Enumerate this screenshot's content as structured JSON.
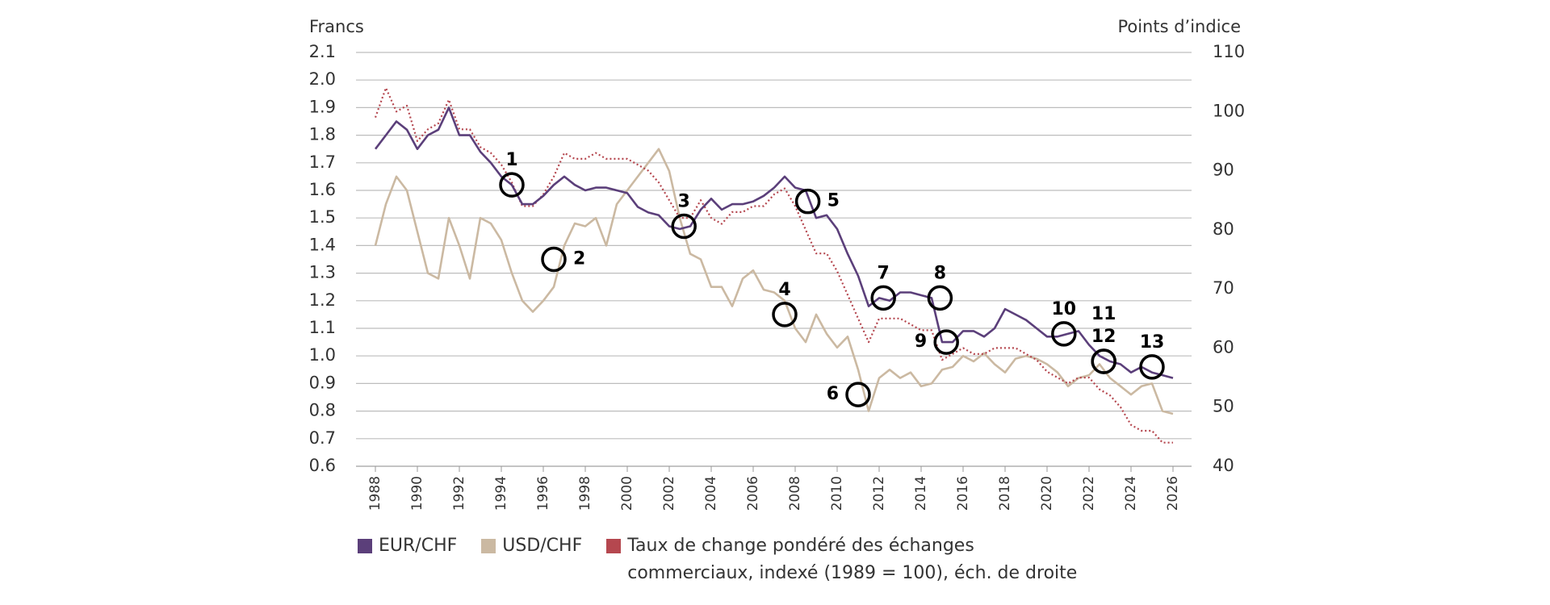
{
  "chart_data": {
    "type": "line",
    "ylabel": "Francs",
    "y2label": "Points d’indice",
    "x": [
      1988,
      1988.5,
      1989,
      1989.5,
      1990,
      1990.5,
      1991,
      1991.5,
      1992,
      1992.5,
      1993,
      1993.5,
      1994,
      1994.5,
      1995,
      1995.5,
      1996,
      1996.5,
      1997,
      1997.5,
      1998,
      1998.5,
      1999,
      1999.5,
      2000,
      2000.5,
      2001,
      2001.5,
      2002,
      2002.5,
      2003,
      2003.5,
      2004,
      2004.5,
      2005,
      2005.5,
      2006,
      2006.5,
      2007,
      2007.5,
      2008,
      2008.5,
      2009,
      2009.5,
      2010,
      2010.5,
      2011,
      2011.5,
      2012,
      2012.5,
      2013,
      2013.5,
      2014,
      2014.5,
      2015,
      2015.5,
      2016,
      2016.5,
      2017,
      2017.5,
      2018,
      2018.5,
      2019,
      2019.5,
      2020,
      2020.5,
      2021,
      2021.5,
      2022,
      2022.5,
      2023,
      2023.5,
      2024,
      2024.5,
      2025,
      2025.5,
      2026
    ],
    "series": [
      {
        "name": "EUR/CHF",
        "color": "#5b3f7a",
        "style": "solid",
        "values": [
          1.75,
          1.8,
          1.85,
          1.82,
          1.75,
          1.8,
          1.82,
          1.9,
          1.8,
          1.8,
          1.74,
          1.7,
          1.65,
          1.62,
          1.55,
          1.55,
          1.58,
          1.62,
          1.65,
          1.62,
          1.6,
          1.61,
          1.61,
          1.6,
          1.59,
          1.54,
          1.52,
          1.51,
          1.47,
          1.46,
          1.47,
          1.53,
          1.57,
          1.53,
          1.55,
          1.55,
          1.56,
          1.58,
          1.61,
          1.65,
          1.61,
          1.6,
          1.5,
          1.51,
          1.46,
          1.37,
          1.29,
          1.18,
          1.21,
          1.2,
          1.23,
          1.23,
          1.22,
          1.21,
          1.05,
          1.05,
          1.09,
          1.09,
          1.07,
          1.1,
          1.17,
          1.15,
          1.13,
          1.1,
          1.07,
          1.07,
          1.08,
          1.09,
          1.04,
          1.0,
          0.98,
          0.97,
          0.94,
          0.96,
          0.94,
          0.93,
          0.92
        ]
      },
      {
        "name": "USD/CHF",
        "color": "#cbb9a2",
        "style": "solid",
        "values": [
          1.4,
          1.55,
          1.65,
          1.6,
          1.45,
          1.3,
          1.28,
          1.5,
          1.4,
          1.28,
          1.5,
          1.48,
          1.42,
          1.3,
          1.2,
          1.16,
          1.2,
          1.25,
          1.4,
          1.48,
          1.47,
          1.5,
          1.4,
          1.55,
          1.6,
          1.65,
          1.7,
          1.75,
          1.67,
          1.5,
          1.37,
          1.35,
          1.25,
          1.25,
          1.18,
          1.28,
          1.31,
          1.24,
          1.23,
          1.2,
          1.1,
          1.05,
          1.15,
          1.08,
          1.03,
          1.07,
          0.95,
          0.8,
          0.92,
          0.95,
          0.92,
          0.94,
          0.89,
          0.9,
          0.95,
          0.96,
          1.0,
          0.98,
          1.01,
          0.97,
          0.94,
          0.99,
          1.0,
          0.99,
          0.97,
          0.94,
          0.89,
          0.92,
          0.93,
          0.97,
          0.92,
          0.89,
          0.86,
          0.89,
          0.9,
          0.8,
          0.79
        ]
      },
      {
        "name": "Taux de change pondéré des échanges commerciaux, indexé (1989 = 100), éch. de droite",
        "color": "#b5474f",
        "style": "dotted",
        "axis": "y2",
        "values": [
          99,
          104,
          100,
          101,
          95,
          97,
          98,
          102,
          97,
          97,
          94,
          93,
          91,
          88,
          84,
          84,
          86,
          89,
          93,
          92,
          92,
          93,
          92,
          92,
          92,
          91,
          90,
          88,
          85,
          82,
          82,
          85,
          82,
          81,
          83,
          83,
          84,
          84,
          86,
          87,
          84,
          80,
          76,
          76,
          73,
          69,
          65,
          61,
          65,
          65,
          65,
          64,
          63,
          63,
          58,
          59,
          60,
          59,
          59,
          60,
          60,
          60,
          59,
          58,
          56,
          55,
          54,
          55,
          55,
          53,
          52,
          50,
          47,
          46,
          46,
          44,
          44
        ]
      }
    ],
    "xlim": [
      1988,
      2026
    ],
    "xticks": [
      1988,
      1990,
      1992,
      1994,
      1996,
      1998,
      2000,
      2002,
      2004,
      2006,
      2008,
      2010,
      2012,
      2014,
      2016,
      2018,
      2020,
      2022,
      2024,
      2026
    ],
    "ylim": [
      0.6,
      2.1
    ],
    "yticks": [
      0.6,
      0.7,
      0.8,
      0.9,
      {
        "value": 1,
        "label": "1.0"
      },
      1.1,
      1.2,
      1.3,
      1.4,
      1.5,
      1.6,
      1.7,
      1.8,
      1.9,
      {
        "value": 2,
        "label": "2.0"
      },
      2.1
    ],
    "y2lim": [
      40,
      110
    ],
    "y2ticks": [
      40,
      50,
      60,
      70,
      80,
      90,
      100,
      110
    ],
    "grid": true,
    "annotations": [
      {
        "label": "1",
        "x": 1994.5,
        "y": 1.62,
        "side": "above"
      },
      {
        "label": "2",
        "x": 1996.5,
        "y": 1.35,
        "side": "right"
      },
      {
        "label": "3",
        "x": 2002.7,
        "y": 1.47,
        "side": "above"
      },
      {
        "label": "4",
        "x": 2007.5,
        "y": 1.15,
        "side": "above"
      },
      {
        "label": "5",
        "x": 2008.6,
        "y": 1.56,
        "side": "right"
      },
      {
        "label": "6",
        "x": 2011.0,
        "y": 0.86,
        "side": "left"
      },
      {
        "label": "7",
        "x": 2012.2,
        "y": 1.21,
        "side": "above"
      },
      {
        "label": "8",
        "x": 2014.9,
        "y": 1.21,
        "side": "above"
      },
      {
        "label": "9",
        "x": 2015.2,
        "y": 1.05,
        "side": "left"
      },
      {
        "label": "10",
        "x": 2020.8,
        "y": 1.08,
        "side": "above"
      },
      {
        "label": "11",
        "x": 2022.7,
        "y": 0.98,
        "side": "above2"
      },
      {
        "label": "12",
        "x": 2022.7,
        "y": 0.98,
        "side": "above"
      },
      {
        "label": "13",
        "x": 2025.0,
        "y": 0.96,
        "side": "above"
      }
    ]
  }
}
